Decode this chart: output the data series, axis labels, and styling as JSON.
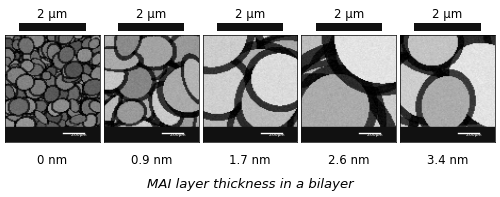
{
  "n_panels": 5,
  "scale_bar_labels": [
    "2 μm",
    "2 μm",
    "2 μm",
    "2 μm",
    "2 μm"
  ],
  "thickness_labels": [
    "0 nm",
    "0.9 nm",
    "1.7 nm",
    "2.6 nm",
    "3.4 nm"
  ],
  "x_label": "MAI layer thickness in a bilayer",
  "background_color": "#ffffff",
  "image_bg_values": [
    0.533,
    0.6,
    0.667,
    0.733,
    0.69
  ],
  "grain_sizes": [
    12,
    32,
    48,
    75,
    65
  ],
  "grain_counts": [
    220,
    90,
    55,
    28,
    32
  ],
  "grain_brightness": [
    0.45,
    0.65,
    0.72,
    0.78,
    0.75
  ],
  "panel_edge_color": "#000000",
  "top_bar_color": "#111111",
  "bottom_strip_color": "#111111",
  "label_fontsize": 8.5,
  "xlabel_fontsize": 9.5
}
